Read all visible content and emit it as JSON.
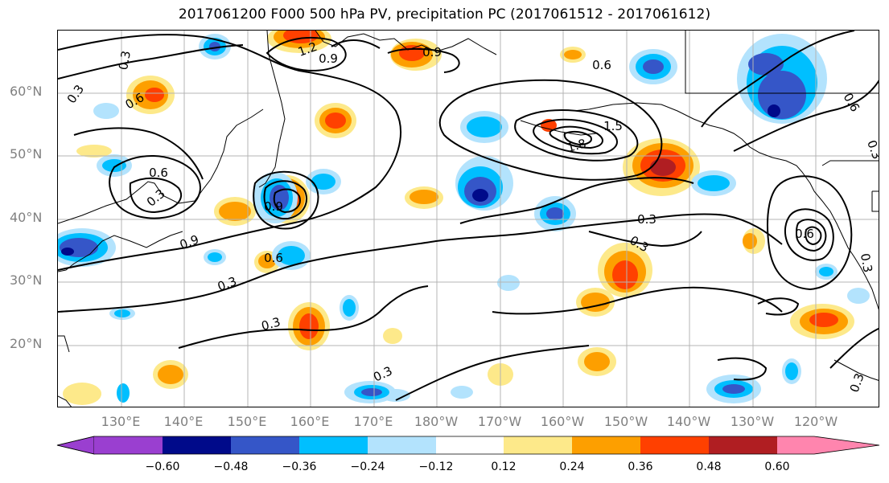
{
  "title": "2017061200 F000 500 hPa PV, precipitation PC (2017061512 - 2017061612)",
  "lat_labels": [
    "60°N",
    "50°N",
    "40°N",
    "30°N",
    "20°N"
  ],
  "lon_labels": [
    "130°E",
    "140°E",
    "150°E",
    "160°E",
    "170°E",
    "180°W",
    "170°W",
    "160°W",
    "150°W",
    "140°W",
    "130°W",
    "120°W"
  ],
  "contour_labels": [
    "0.3",
    "0.6",
    "0.9",
    "1.2",
    "1.5",
    "1.8",
    "0.6",
    "0.9",
    "0.6",
    "0.3",
    "0.3",
    "0.3",
    "0.6",
    "0.3",
    "0.3",
    "0.9",
    "0.3",
    "0.6",
    "0.3",
    "0.3",
    "0.6",
    "0.9",
    "0.3",
    "0.3"
  ],
  "colorbar": {
    "ticks": [
      "−0.60",
      "−0.48",
      "−0.36",
      "−0.24",
      "−0.12",
      "0.12",
      "0.24",
      "0.36",
      "0.48",
      "0.60"
    ],
    "colors": [
      "#9a3fd0",
      "#000a8a",
      "#3556c8",
      "#00bfff",
      "#b3e3fd",
      "#ffffff",
      "#fde98a",
      "#fd9f00",
      "#ff4000",
      "#b01e22",
      "#ff85ae"
    ]
  },
  "colors": {
    "neg_strong": "#000a8a",
    "neg_mid": "#3556c8",
    "neg": "#00bfff",
    "neg_light": "#b3e3fd",
    "pos_light": "#fde98a",
    "pos": "#fd9f00",
    "pos_mid": "#ff4000",
    "pos_strong": "#b01e22",
    "grid": "#b4b4b4",
    "tick_label": "#808080"
  }
}
